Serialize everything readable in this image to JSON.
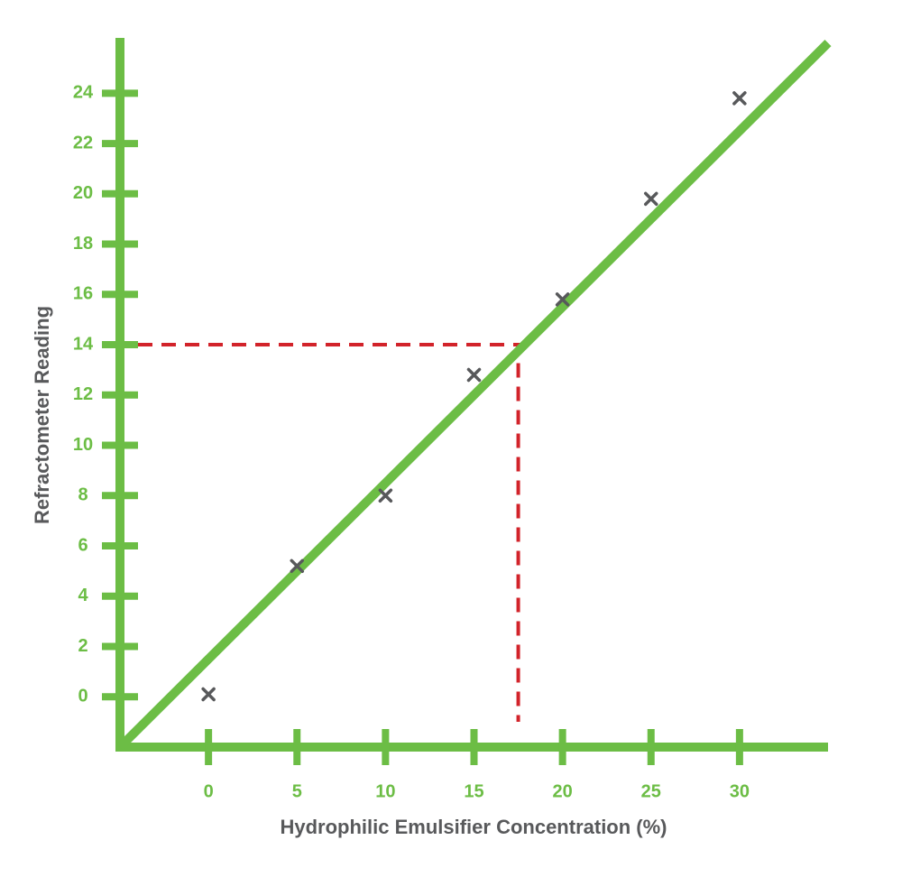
{
  "chart_data": {
    "type": "scatter",
    "x_label": "Hydrophilic Emulsifier Concentration (%)",
    "y_label": "Refractometer Reading",
    "x": [
      0,
      5,
      10,
      15,
      20,
      25,
      30
    ],
    "values": [
      0.1,
      5.2,
      8,
      12.8,
      15.8,
      19.8,
      23.8
    ],
    "color": "#58595b",
    "axis_color": "#6cbd45",
    "fit_line": {
      "x": [
        -5,
        35
      ],
      "y": [
        -2,
        26
      ],
      "color": "#6cbd45"
    },
    "reading": {
      "x": 17.5,
      "y": 14,
      "color": "#d2232a"
    },
    "xlim": [
      -5,
      35
    ],
    "ylim": [
      -2,
      26.2
    ],
    "xticks": [
      0,
      5,
      10,
      15,
      20,
      25,
      30
    ],
    "yticks": [
      0,
      2,
      4,
      6,
      8,
      10,
      12,
      14,
      16,
      18,
      20,
      22,
      24
    ]
  }
}
